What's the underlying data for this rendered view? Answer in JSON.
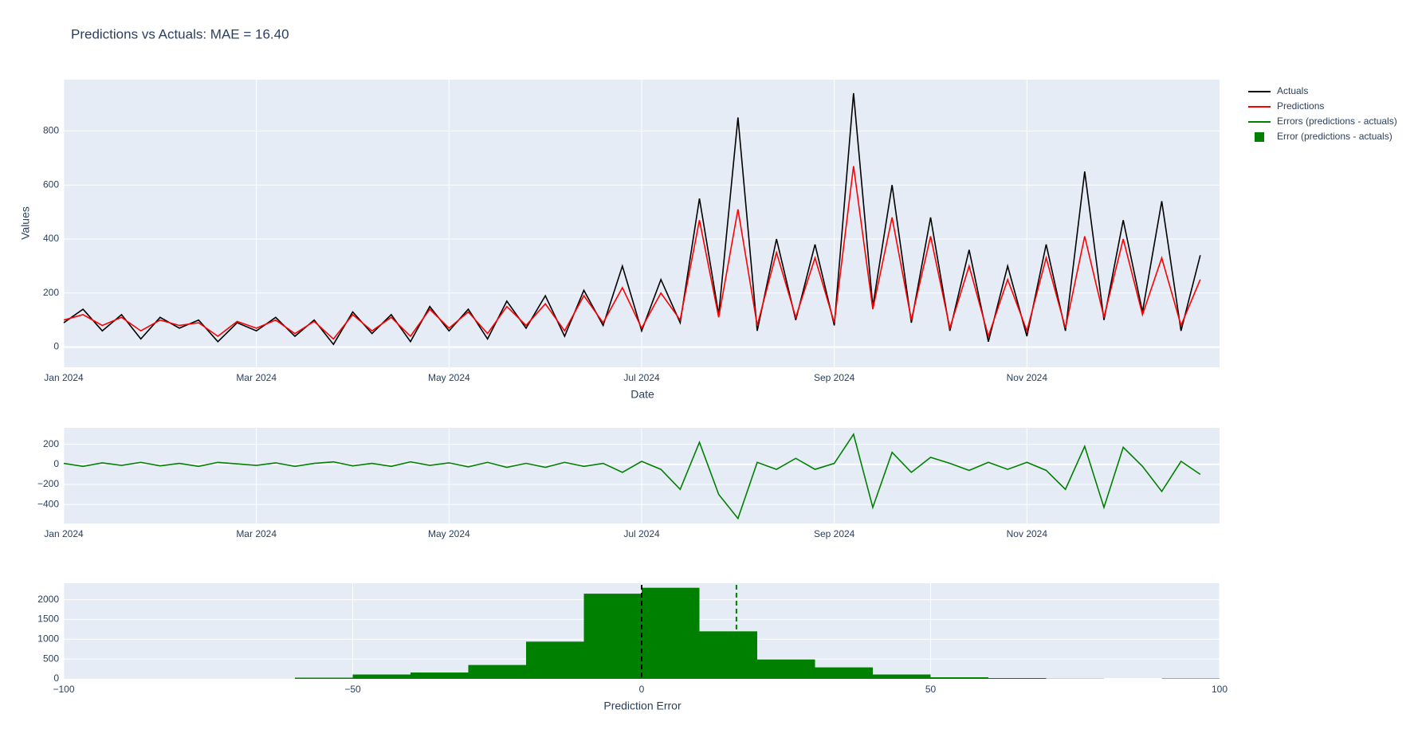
{
  "chart_data": [
    {
      "type": "line",
      "title": "Predictions vs Actuals: MAE = 16.40",
      "xlabel": "Date",
      "ylabel": "Values",
      "x": [
        0,
        0.2,
        0.4,
        0.6,
        0.8,
        1,
        1.2,
        1.4,
        1.6,
        1.8,
        2,
        2.2,
        2.4,
        2.6,
        2.8,
        3,
        3.2,
        3.4,
        3.6,
        3.8,
        4,
        4.2,
        4.4,
        4.6,
        4.8,
        5,
        5.2,
        5.4,
        5.6,
        5.8,
        6,
        6.2,
        6.4,
        6.6,
        6.8,
        7,
        7.2,
        7.4,
        7.6,
        7.8,
        8,
        8.2,
        8.4,
        8.6,
        8.8,
        9,
        9.2,
        9.4,
        9.6,
        9.8,
        10,
        10.2,
        10.4,
        10.6,
        10.8,
        11,
        11.2,
        11.4,
        11.6,
        11.8
      ],
      "series": [
        {
          "name": "Actuals",
          "color": "#000000",
          "values": [
            90,
            140,
            60,
            120,
            30,
            110,
            70,
            100,
            20,
            90,
            60,
            110,
            40,
            100,
            10,
            130,
            50,
            120,
            20,
            150,
            60,
            140,
            30,
            170,
            70,
            190,
            40,
            210,
            80,
            300,
            60,
            250,
            90,
            550,
            120,
            850,
            60,
            400,
            100,
            380,
            80,
            940,
            150,
            600,
            90,
            480,
            60,
            360,
            20,
            300,
            40,
            380,
            60,
            650,
            100,
            470,
            130,
            540,
            60,
            340
          ]
        },
        {
          "name": "Predictions",
          "color": "#ff0000",
          "values": [
            100,
            120,
            80,
            110,
            60,
            100,
            80,
            90,
            40,
            95,
            70,
            100,
            50,
            95,
            30,
            120,
            60,
            110,
            40,
            140,
            70,
            130,
            50,
            150,
            80,
            160,
            60,
            190,
            90,
            220,
            70,
            200,
            100,
            470,
            110,
            510,
            80,
            350,
            110,
            330,
            90,
            670,
            140,
            480,
            100,
            410,
            70,
            300,
            40,
            250,
            60,
            330,
            70,
            410,
            110,
            400,
            120,
            330,
            80,
            250
          ]
        }
      ],
      "xlim": [
        0,
        12
      ],
      "xticks": [
        {
          "value": 0,
          "label": "Jan 2024"
        },
        {
          "value": 2,
          "label": "Mar 2024"
        },
        {
          "value": 4,
          "label": "May 2024"
        },
        {
          "value": 6,
          "label": "Jul 2024"
        },
        {
          "value": 8,
          "label": "Sep 2024"
        },
        {
          "value": 10,
          "label": "Nov 2024"
        }
      ],
      "ylim": [
        -75,
        990
      ],
      "yticks": [
        0,
        200,
        400,
        600,
        800
      ],
      "grid": true
    },
    {
      "type": "line",
      "x": [
        0,
        0.2,
        0.4,
        0.6,
        0.8,
        1,
        1.2,
        1.4,
        1.6,
        1.8,
        2,
        2.2,
        2.4,
        2.6,
        2.8,
        3,
        3.2,
        3.4,
        3.6,
        3.8,
        4,
        4.2,
        4.4,
        4.6,
        4.8,
        5,
        5.2,
        5.4,
        5.6,
        5.8,
        6,
        6.2,
        6.4,
        6.6,
        6.8,
        7,
        7.2,
        7.4,
        7.6,
        7.8,
        8,
        8.2,
        8.4,
        8.6,
        8.8,
        9,
        9.2,
        9.4,
        9.6,
        9.8,
        10,
        10.2,
        10.4,
        10.6,
        10.8,
        11,
        11.2,
        11.4,
        11.6,
        11.8
      ],
      "series": [
        {
          "name": "Errors (predictions - actuals)",
          "color": "#008000",
          "values": [
            10,
            -20,
            15,
            -10,
            20,
            -15,
            10,
            -20,
            20,
            5,
            -10,
            15,
            -20,
            10,
            25,
            -15,
            10,
            -20,
            25,
            -10,
            15,
            -25,
            20,
            -30,
            10,
            -30,
            20,
            -20,
            10,
            -80,
            30,
            -50,
            -250,
            220,
            -300,
            -540,
            20,
            -50,
            60,
            -50,
            10,
            300,
            -430,
            120,
            -80,
            70,
            10,
            -60,
            20,
            -50,
            20,
            -60,
            -250,
            180,
            -430,
            170,
            -20,
            -270,
            30,
            -100
          ]
        }
      ],
      "xlim": [
        0,
        12
      ],
      "xticks": [
        {
          "value": 0,
          "label": "Jan 2024"
        },
        {
          "value": 2,
          "label": "Mar 2024"
        },
        {
          "value": 4,
          "label": "May 2024"
        },
        {
          "value": 6,
          "label": "Jul 2024"
        },
        {
          "value": 8,
          "label": "Sep 2024"
        },
        {
          "value": 10,
          "label": "Nov 2024"
        }
      ],
      "ylim": [
        -590,
        364
      ],
      "yticks": [
        {
          "value": -400,
          "label": "−400"
        },
        {
          "value": -200,
          "label": "−200"
        },
        0,
        200
      ],
      "grid": true
    },
    {
      "type": "histogram",
      "xlabel": "Prediction Error",
      "name": "Error (predictions - actuals)",
      "color": "#008000",
      "bins": [
        -100,
        -90,
        -80,
        -70,
        -60,
        -50,
        -40,
        -30,
        -20,
        -10,
        0,
        10,
        20,
        30,
        40,
        50,
        60,
        70,
        80,
        90,
        100
      ],
      "counts": [
        2,
        2,
        2,
        2,
        30,
        110,
        160,
        350,
        940,
        2150,
        2300,
        1200,
        490,
        290,
        110,
        40,
        20,
        5,
        0,
        10
      ],
      "vlines": [
        {
          "value": 0,
          "color": "#000000"
        },
        {
          "value": 16.4,
          "color": "#008000"
        }
      ],
      "xlim": [
        -100,
        100
      ],
      "xticks": [
        {
          "value": -100,
          "label": "−100"
        },
        {
          "value": -50,
          "label": "−50"
        },
        0,
        50,
        100
      ],
      "ylim": [
        0,
        2414
      ],
      "yticks": [
        0,
        500,
        1000,
        1500,
        2000
      ],
      "grid": true
    }
  ]
}
